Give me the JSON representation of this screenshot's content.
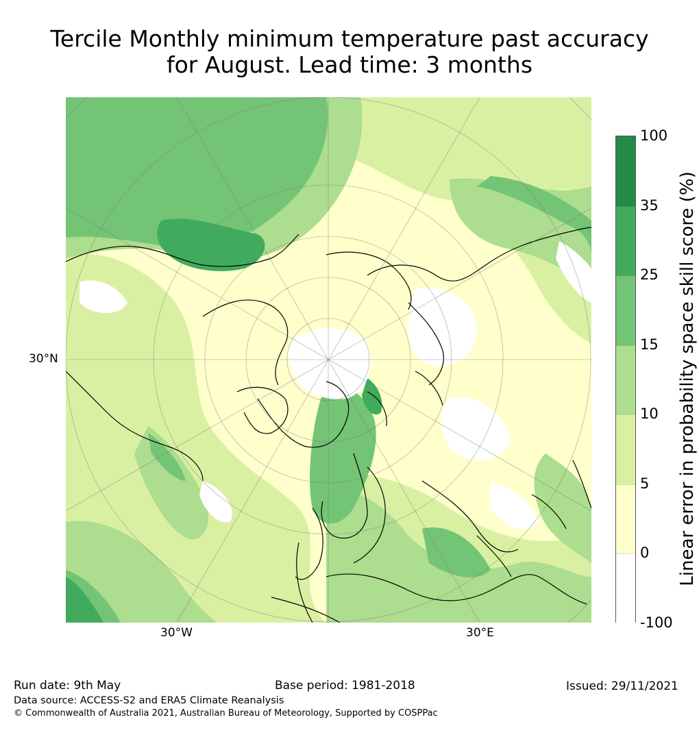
{
  "title": {
    "line1": "Tercile Monthly minimum temperature past accuracy",
    "line2": "for August. Lead time: 3 months"
  },
  "map": {
    "projection": "north polar stereographic",
    "lat_label": "30°N",
    "lon_labels": {
      "west": "30°W",
      "east": "30°E"
    }
  },
  "colorbar": {
    "title": "Linear error in probability space skill score (%)",
    "ticks": [
      "100",
      "35",
      "25",
      "15",
      "10",
      "5",
      "0",
      "-100"
    ],
    "colors": [
      "#238b45",
      "#41ab5d",
      "#74c476",
      "#addd8e",
      "#d9f0a3",
      "#ffffcc",
      "#ffffff"
    ]
  },
  "footer": {
    "run_date": "Run date: 9th May",
    "base_period": "Base period: 1981-2018",
    "issued": "Issued: 29/11/2021",
    "data_source": "Data source: ACCESS-S2 and ERA5 Climate Reanalysis",
    "copyright": "© Commonwealth of Australia 2021, Australian Bureau of Meteorology, Supported by COSPPac"
  }
}
